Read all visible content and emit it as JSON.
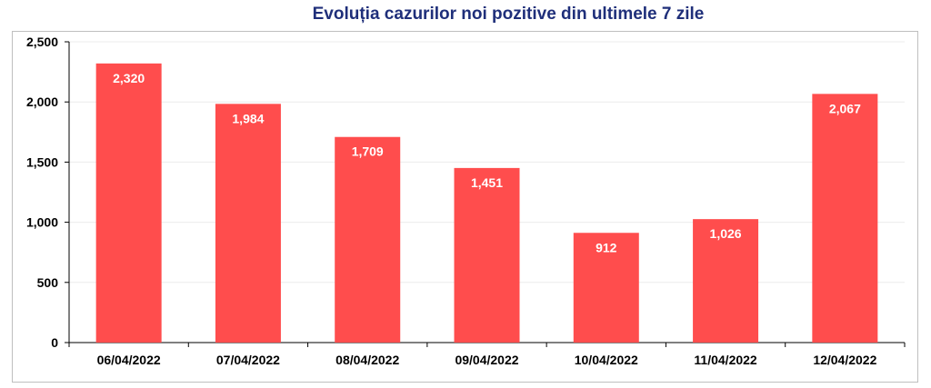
{
  "chart_data": {
    "type": "bar",
    "title": "Evoluția cazurilor noi pozitive din ultimele 7 zile",
    "categories": [
      "06/04/2022",
      "07/04/2022",
      "08/04/2022",
      "09/04/2022",
      "10/04/2022",
      "11/04/2022",
      "12/04/2022"
    ],
    "values": [
      2320,
      1984,
      1709,
      1451,
      912,
      1026,
      2067
    ],
    "value_labels": [
      "2,320",
      "1,984",
      "1,709",
      "1,451",
      "912",
      "1,026",
      "2,067"
    ],
    "y_ticks": [
      0,
      500,
      1000,
      1500,
      2000,
      2500
    ],
    "y_tick_labels": [
      "0",
      "500",
      "1,000",
      "1,500",
      "2,000",
      "2,500"
    ],
    "ylim": [
      0,
      2500
    ],
    "grid": true,
    "bar_color": "#ff4d4d",
    "title_color": "#1f2f7a"
  }
}
